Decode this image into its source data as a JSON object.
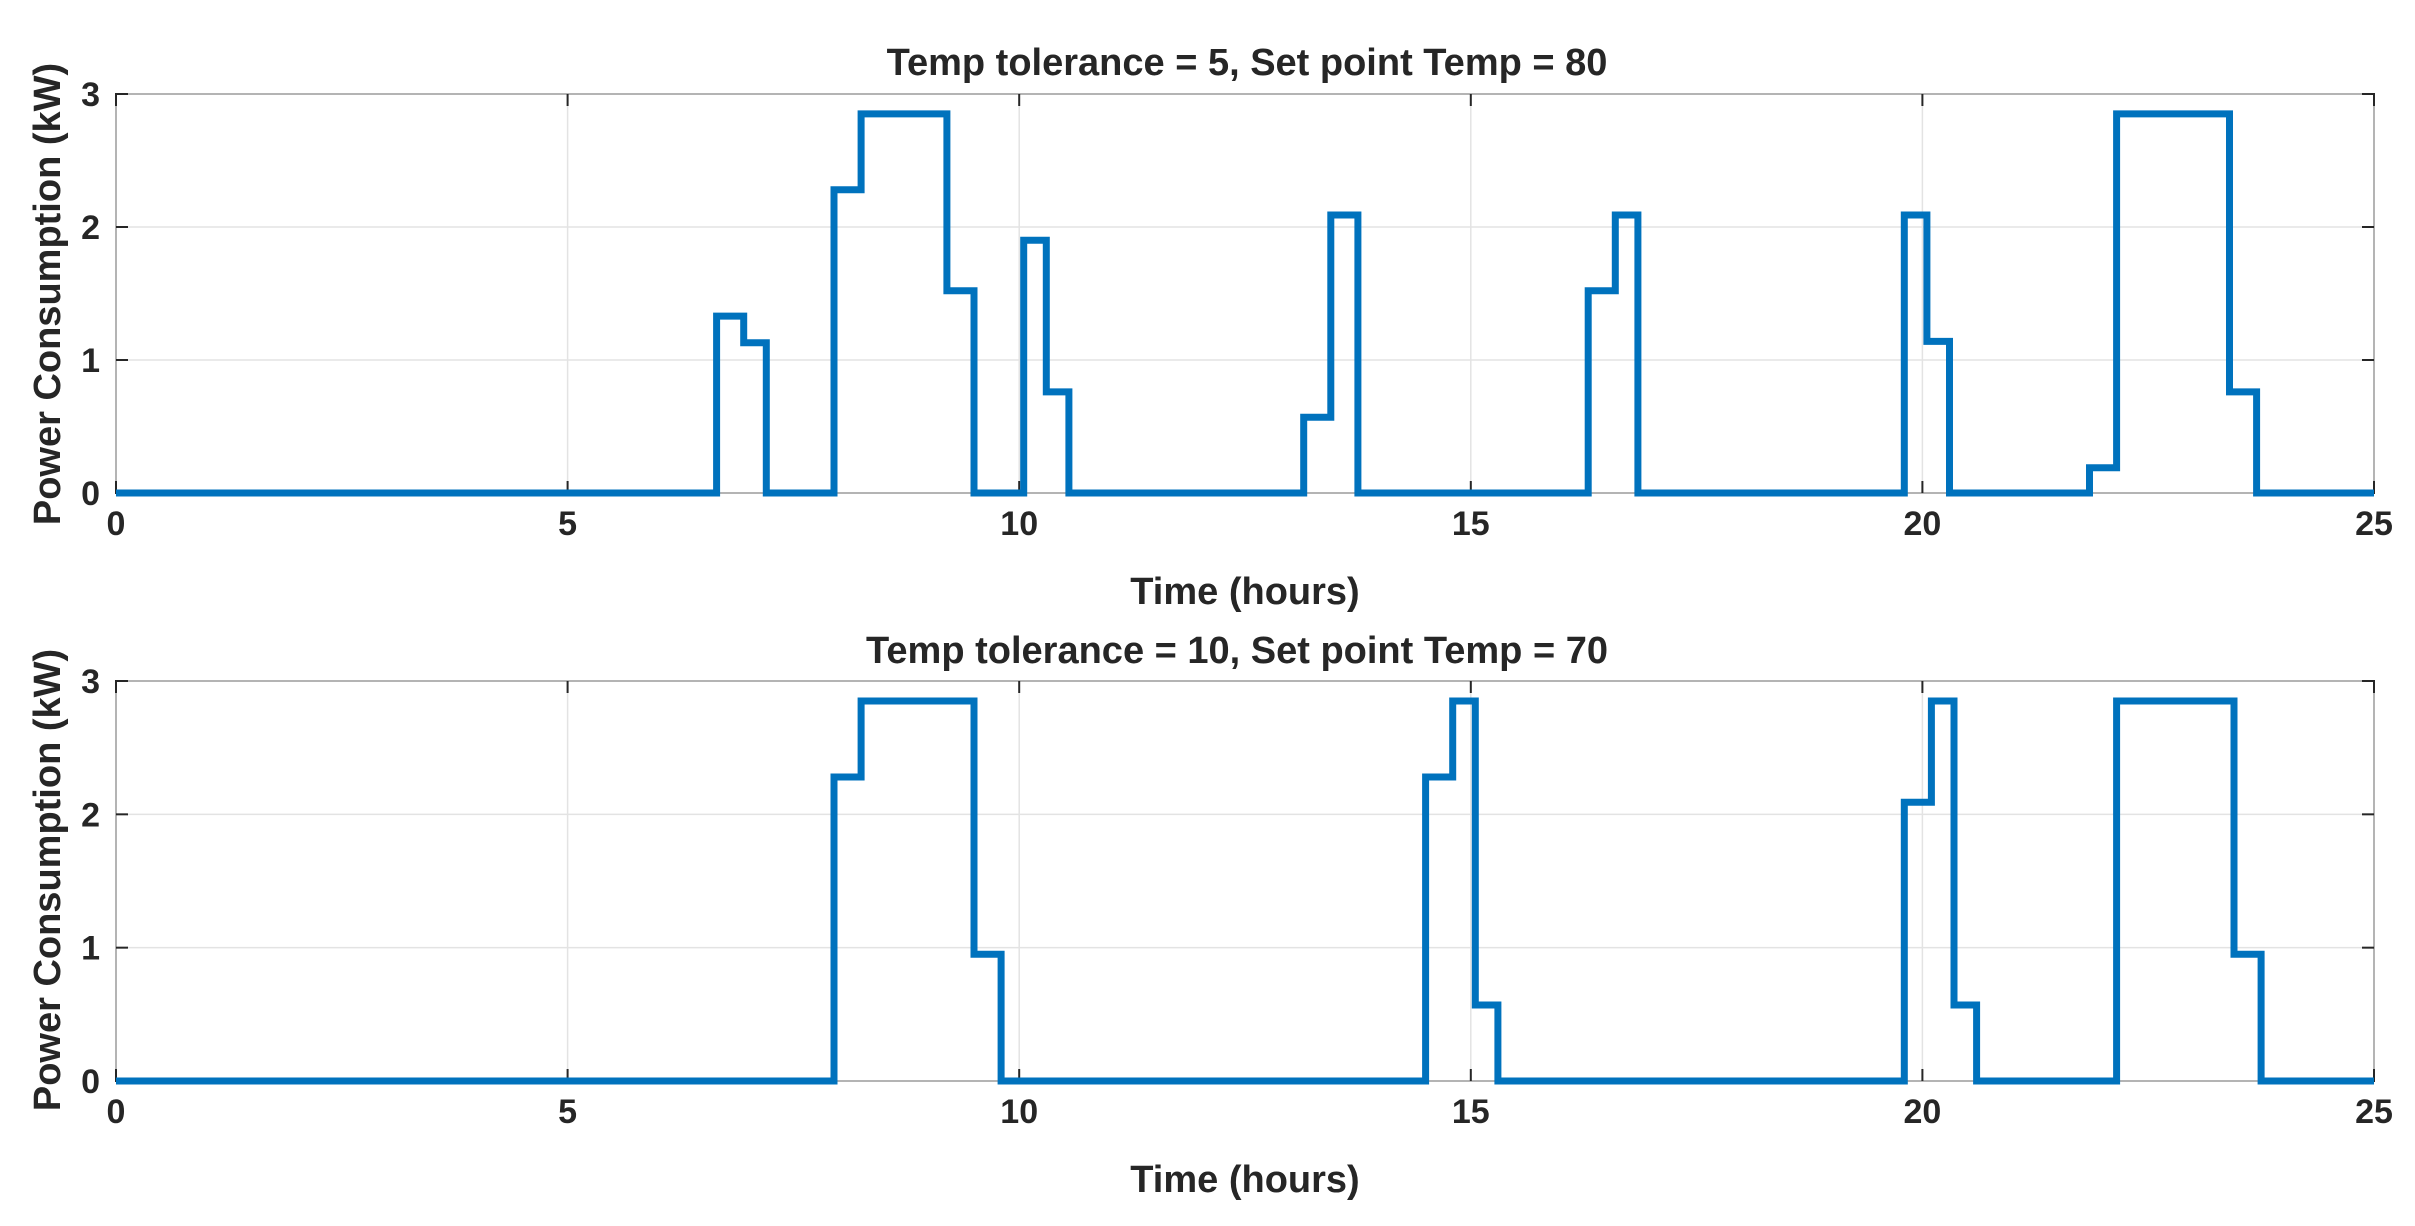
{
  "chart_data": [
    {
      "type": "line",
      "step": true,
      "title": "Temp tolerance = 5, Set point Temp = 80",
      "xlabel": "Time (hours)",
      "ylabel": "Power Consumption (kW)",
      "xlim": [
        0,
        25
      ],
      "ylim": [
        0,
        3
      ],
      "xticks": [
        0,
        5,
        10,
        15,
        20,
        25
      ],
      "yticks": [
        0,
        1,
        2,
        3
      ],
      "grid": true,
      "color": "#0072BD",
      "series": [
        {
          "name": "Power",
          "x": [
            0,
            6.65,
            6.95,
            7.2,
            7.95,
            8.25,
            9.2,
            9.5,
            10.05,
            10.3,
            10.55,
            13.15,
            13.45,
            13.75,
            16.3,
            16.6,
            16.85,
            19.8,
            20.05,
            20.3,
            21.85,
            22.15,
            23.4,
            23.7,
            25
          ],
          "y": [
            0,
            1.33,
            1.13,
            0,
            2.28,
            2.85,
            1.52,
            0,
            1.9,
            0.76,
            0,
            0.57,
            2.09,
            0,
            1.52,
            2.09,
            0,
            2.09,
            1.14,
            0,
            0.19,
            2.85,
            0.76,
            0,
            0
          ]
        }
      ]
    },
    {
      "type": "line",
      "step": true,
      "title": "Temp tolerance = 10, Set point Temp = 70",
      "xlabel": "Time (hours)",
      "ylabel": "Power Consumption (kW)",
      "xlim": [
        0,
        25
      ],
      "ylim": [
        0,
        3
      ],
      "xticks": [
        0,
        5,
        10,
        15,
        20,
        25
      ],
      "yticks": [
        0,
        1,
        2,
        3
      ],
      "grid": true,
      "color": "#0072BD",
      "series": [
        {
          "name": "Power",
          "x": [
            0,
            7.95,
            8.25,
            9.5,
            9.8,
            14.5,
            14.8,
            15.05,
            15.3,
            19.8,
            20.1,
            20.35,
            20.6,
            22.15,
            23.45,
            23.75,
            25
          ],
          "y": [
            0,
            2.28,
            2.85,
            0.95,
            0,
            2.28,
            2.85,
            0.57,
            0,
            2.09,
            2.85,
            0.57,
            0,
            2.85,
            0.95,
            0,
            0
          ]
        }
      ]
    }
  ]
}
